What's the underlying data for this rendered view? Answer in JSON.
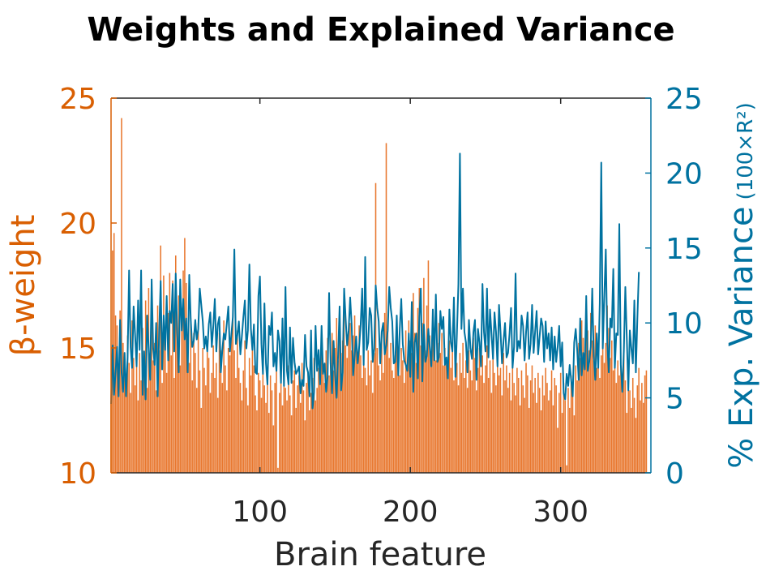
{
  "chart_data": {
    "type": "bar",
    "title": "Weights and Explained Variance",
    "xlabel": "Brain feature",
    "ylabel_left": "β-weight",
    "ylabel_right": "% Exp. Variance",
    "ylabel_right_unit": "(100×R²)",
    "xlim": [
      1,
      360
    ],
    "xticks": [
      "100",
      "200",
      "300"
    ],
    "ylim_left": [
      10,
      25
    ],
    "yticks_left": [
      "10",
      "15",
      "20",
      "25"
    ],
    "ylim_right": [
      0,
      25
    ],
    "yticks_right": [
      "0",
      "5",
      "10",
      "15",
      "20",
      "25"
    ],
    "grid": false,
    "colors": {
      "left": "#d95f02",
      "bar": "#e8772e",
      "right": "#0072a0",
      "axis": "#262626"
    },
    "n_features": 360,
    "series": [
      {
        "kind": "bar",
        "axis": "left",
        "values": [
          12.8,
          18.9,
          19.6,
          16.3,
          15.9,
          13.1,
          16.5,
          24.2,
          15.2,
          14.1,
          13.8,
          15.5,
          14.4,
          13.2,
          16.1,
          14.6,
          13.5,
          15.0,
          12.9,
          14.8,
          13.7,
          15.8,
          14.2,
          16.9,
          13.4,
          17.4,
          13.9,
          16.0,
          14.5,
          15.2,
          13.3,
          16.7,
          14.9,
          19.1,
          13.6,
          17.9,
          15.4,
          14.0,
          16.4,
          18.0,
          14.7,
          17.7,
          13.8,
          18.7,
          15.8,
          17.1,
          14.3,
          16.6,
          18.1,
          19.4,
          17.6,
          15.3,
          14.4,
          16.2,
          13.7,
          15.6,
          14.8,
          13.4,
          16.0,
          14.1,
          12.6,
          15.0,
          14.2,
          13.5,
          15.3,
          14.6,
          13.2,
          14.0,
          15.1,
          13.8,
          14.4,
          13.0,
          15.6,
          14.9,
          13.6,
          16.1,
          14.3,
          13.3,
          15.0,
          14.7,
          15.5,
          16.4,
          14.9,
          13.8,
          15.7,
          14.2,
          13.6,
          12.9,
          14.1,
          15.3,
          13.4,
          12.7,
          14.6,
          13.9,
          15.0,
          14.3,
          13.1,
          12.5,
          14.0,
          13.7,
          13.0,
          14.8,
          13.5,
          12.8,
          14.2,
          12.4,
          13.9,
          13.3,
          11.9,
          13.6,
          14.5,
          10.2,
          13.2,
          14.0,
          12.7,
          13.8,
          13.4,
          12.9,
          14.3,
          13.1,
          12.3,
          13.7,
          14.1,
          12.6,
          13.5,
          13.9,
          12.8,
          14.4,
          13.3,
          12.1,
          13.6,
          14.0,
          12.5,
          13.2,
          13.8,
          14.6,
          12.9,
          13.4,
          14.2,
          13.7,
          15.1,
          14.3,
          13.6,
          14.9,
          15.4,
          13.9,
          14.7,
          15.6,
          14.1,
          15.0,
          16.2,
          14.5,
          15.8,
          14.8,
          15.3,
          16.5,
          15.1,
          14.6,
          15.7,
          16.0,
          14.9,
          15.5,
          16.3,
          15.2,
          14.4,
          15.9,
          14.7,
          13.8,
          15.1,
          14.2,
          13.5,
          14.9,
          13.9,
          14.5,
          13.2,
          14.8,
          21.6,
          15.0,
          14.3,
          13.7,
          15.6,
          14.0,
          16.4,
          23.2,
          15.9,
          14.6,
          15.2,
          14.1,
          13.8,
          14.7,
          15.4,
          14.3,
          13.9,
          15.0,
          14.5,
          13.6,
          15.7,
          14.2,
          16.1,
          15.3,
          14.8,
          17.2,
          15.6,
          14.4,
          16.6,
          17.4,
          15.1,
          16.0,
          17.8,
          14.9,
          16.7,
          18.5,
          15.5,
          14.7,
          16.3,
          15.8,
          14.5,
          15.2,
          16.0,
          14.8,
          15.6,
          14.3,
          15.0,
          14.6,
          13.9,
          15.3,
          14.2,
          14.9,
          13.7,
          15.1,
          14.4,
          13.5,
          14.8,
          14.0,
          15.2,
          13.8,
          14.5,
          13.4,
          14.9,
          14.1,
          13.7,
          15.4,
          14.6,
          13.3,
          14.2,
          15.0,
          13.9,
          14.7,
          13.6,
          14.3,
          15.1,
          13.8,
          14.5,
          13.2,
          14.9,
          14.0,
          13.5,
          14.6,
          13.9,
          14.2,
          13.1,
          14.8,
          13.7,
          14.3,
          13.4,
          14.0,
          12.9,
          14.5,
          13.6,
          13.1,
          14.2,
          13.8,
          12.7,
          14.1,
          13.5,
          13.0,
          14.4,
          13.9,
          12.6,
          13.7,
          14.3,
          13.2,
          13.8,
          12.8,
          14.0,
          13.4,
          12.5,
          13.9,
          13.1,
          14.2,
          13.6,
          12.9,
          13.3,
          14.1,
          12.7,
          13.8,
          13.5,
          11.8,
          13.2,
          14.0,
          12.4,
          13.6,
          12.9,
          10.3,
          13.4,
          12.6,
          13.9,
          13.1,
          12.3,
          14.3,
          13.7,
          15.2,
          14.6,
          16.1,
          15.4,
          14.8,
          16.9,
          15.7,
          14.9,
          16.4,
          15.3,
          14.5,
          15.9,
          14.2,
          15.1,
          13.8,
          14.7,
          15.5,
          14.4,
          15.2,
          16.7,
          15.8,
          14.6,
          15.3,
          14.1,
          14.9,
          13.6,
          14.5,
          13.9,
          14.3,
          13.4,
          14.8,
          13.7,
          12.4,
          14.1,
          13.3,
          12.6,
          13.8,
          13.0,
          12.2,
          13.5,
          14.2,
          12.9,
          13.6,
          12.8,
          13.9,
          14.1
        ]
      },
      {
        "kind": "line",
        "axis": "right",
        "values": [
          4.6,
          8.5,
          5.2,
          6.7,
          8.4,
          5.1,
          10.2,
          6.7,
          5.4,
          8.0,
          5.1,
          7.7,
          13.5,
          8.4,
          7.0,
          11.1,
          9.2,
          7.1,
          11.5,
          8.2,
          13.5,
          5.2,
          8.1,
          4.9,
          10.5,
          8.3,
          6.2,
          12.9,
          8.3,
          7.2,
          10.0,
          5.1,
          9.4,
          12.8,
          6.9,
          10.5,
          8.2,
          11.8,
          7.5,
          10.8,
          10.0,
          12.6,
          8.1,
          13.3,
          9.3,
          6.7,
          12.9,
          9.5,
          11.6,
          8.9,
          10.3,
          6.7,
          13.2,
          10.2,
          8.4,
          8.8,
          10.2,
          8.9,
          9.6,
          12.3,
          11.2,
          10.1,
          8.3,
          9.1,
          8.1,
          9.9,
          10.7,
          8.4,
          9.8,
          11.6,
          8.1,
          9.9,
          10.4,
          6.7,
          8.2,
          9.3,
          8.9,
          10.0,
          11.1,
          8.1,
          9.2,
          10.4,
          14.9,
          8.6,
          9.2,
          10.1,
          7.9,
          9.1,
          10.4,
          11.5,
          8.3,
          9.5,
          13.9,
          9.6,
          8.2,
          9.9,
          6.7,
          6.6,
          11.8,
          13.1,
          8.6,
          6.6,
          11.3,
          7.3,
          5.9,
          9.8,
          9.2,
          10.7,
          7.1,
          8.0,
          6.8,
          9.5,
          8.8,
          6.0,
          10.3,
          5.8,
          12.4,
          6.8,
          5.9,
          9.7,
          6.0,
          9.0,
          7.4,
          6.6,
          6.8,
          7.1,
          5.3,
          6.2,
          5.8,
          9.2,
          7.1,
          6.7,
          5.1,
          9.5,
          4.3,
          5.4,
          9.8,
          6.8,
          8.2,
          5.9,
          9.8,
          6.6,
          7.3,
          5.4,
          6.4,
          12.0,
          7.3,
          5.3,
          8.8,
          6.5,
          5.0,
          7.9,
          11.1,
          5.5,
          6.7,
          12.3,
          10.3,
          8.5,
          9.5,
          11.7,
          9.9,
          6.5,
          7.8,
          9.1,
          7.3,
          8.4,
          9.9,
          12.3,
          7.2,
          14.4,
          8.2,
          8.7,
          11.0,
          10.5,
          7.4,
          8.3,
          12.5,
          11.0,
          10.1,
          7.3,
          9.4,
          10.0,
          7.9,
          8.5,
          9.5,
          12.4,
          11.0,
          10.1,
          7.3,
          7.4,
          10.5,
          6.5,
          9.6,
          11.6,
          8.6,
          7.5,
          7.2,
          6.8,
          9.3,
          6.4,
          11.4,
          5.4,
          8.7,
          9.3,
          6.3,
          10.4,
          12.3,
          6.1,
          9.9,
          7.4,
          7.8,
          9.6,
          8.3,
          7.1,
          10.9,
          7.5,
          11.9,
          7.4,
          7.7,
          10.8,
          9.6,
          10.4,
          7.2,
          7.7,
          6.3,
          10.9,
          8.7,
          8.1,
          11.7,
          6.4,
          9.3,
          12.6,
          21.3,
          9.6,
          12.3,
          9.4,
          8.7,
          6.7,
          10.2,
          8.3,
          7.6,
          9.4,
          10.2,
          6.2,
          9.6,
          8.7,
          7.1,
          12.6,
          9.4,
          8.1,
          12.3,
          7.7,
          10.9,
          9.3,
          7.6,
          10.7,
          9.4,
          7.1,
          11.2,
          9.4,
          7.3,
          8.8,
          10.0,
          7.7,
          8.0,
          9.3,
          11.0,
          7.0,
          8.4,
          13.3,
          8.1,
          8.8,
          8.3,
          10.5,
          9.8,
          7.5,
          9.4,
          10.7,
          7.6,
          8.6,
          11.2,
          8.0,
          9.4,
          10.8,
          7.9,
          9.1,
          10.3,
          9.8,
          7.4,
          10.1,
          8.3,
          9.3,
          7.5,
          9.7,
          6.9,
          9.1,
          7.4,
          8.4,
          9.8,
          7.1,
          8.7,
          5.3,
          4.9,
          6.6,
          5.8,
          7.2,
          6.2,
          5.1,
          8.7,
          9.6,
          8.2,
          6.2,
          10.3,
          6.5,
          8.0,
          6.9,
          11.8,
          6.8,
          7.4,
          8.4,
          12.3,
          7.8,
          6.2,
          9.3,
          7.0,
          11.3,
          20.7,
          8.3,
          11.7,
          14.9,
          8.7,
          6.7,
          10.3,
          9.7,
          13.6,
          7.0,
          9.3,
          9.2,
          16.6,
          7.2,
          5.4,
          8.1,
          12.4,
          8.9,
          5.5,
          9.5,
          8.3,
          7.3,
          11.5,
          6.7,
          10.3,
          13.4
        ]
      }
    ]
  }
}
